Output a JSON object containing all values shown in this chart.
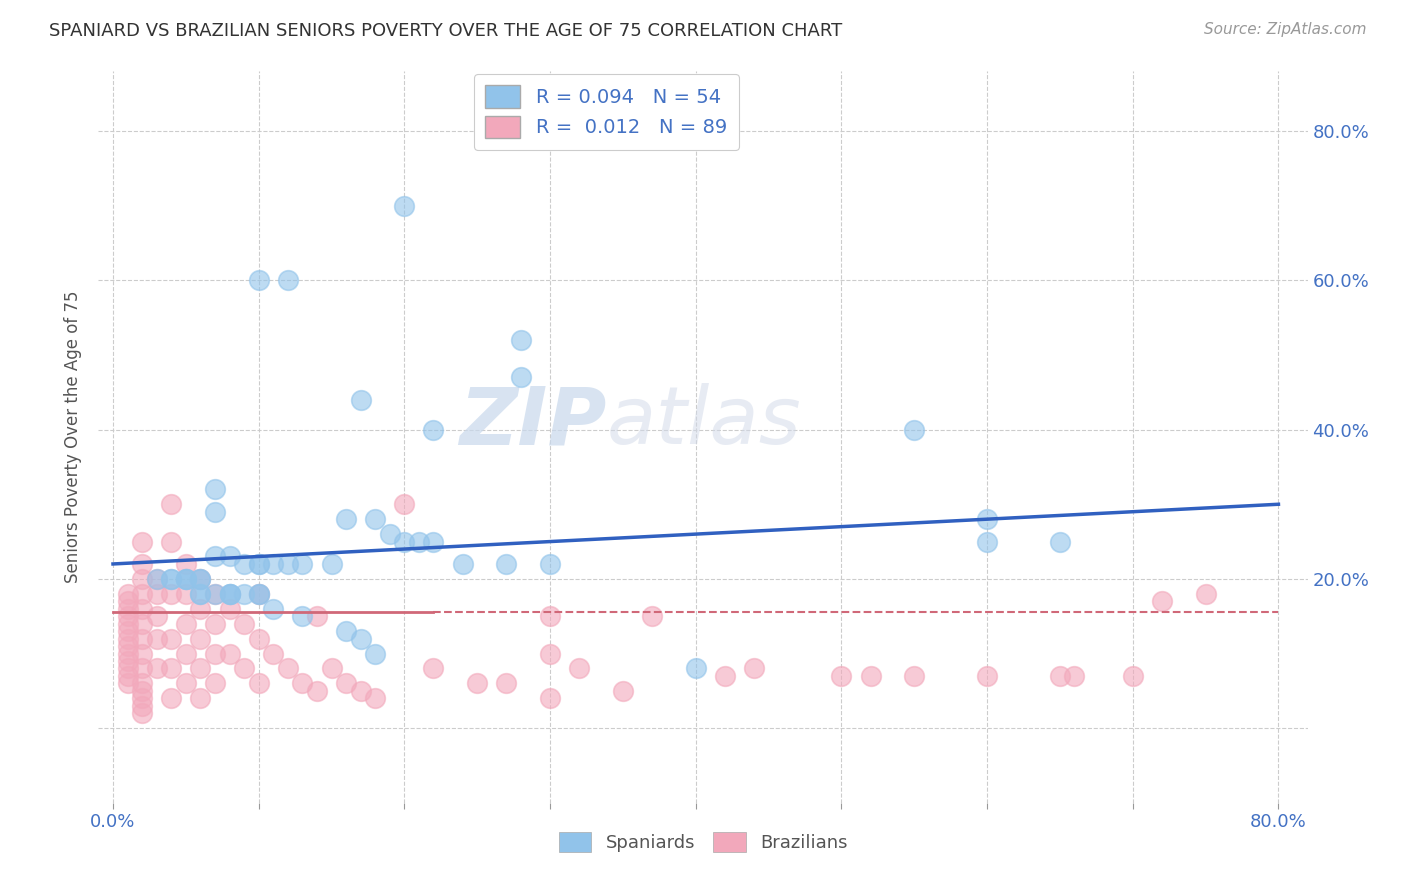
{
  "title": "SPANIARD VS BRAZILIAN SENIORS POVERTY OVER THE AGE OF 75 CORRELATION CHART",
  "source": "Source: ZipAtlas.com",
  "ylabel": "Seniors Poverty Over the Age of 75",
  "spaniard_color": "#91C3EA",
  "brazilian_color": "#F2A8BB",
  "spaniard_line_color": "#3060C0",
  "brazilian_line_color": "#D06878",
  "r_spaniard": 0.094,
  "n_spaniard": 54,
  "r_brazilian": 0.012,
  "n_brazilian": 89,
  "watermark_zip": "ZIP",
  "watermark_atlas": "atlas",
  "spaniards_x": [
    0.2,
    0.1,
    0.12,
    0.28,
    0.28,
    0.17,
    0.22,
    0.55,
    0.6,
    0.6,
    0.65,
    0.07,
    0.07,
    0.16,
    0.18,
    0.19,
    0.2,
    0.21,
    0.22,
    0.07,
    0.08,
    0.09,
    0.1,
    0.1,
    0.11,
    0.12,
    0.13,
    0.15,
    0.24,
    0.27,
    0.03,
    0.04,
    0.04,
    0.05,
    0.05,
    0.05,
    0.06,
    0.06,
    0.06,
    0.06,
    0.07,
    0.08,
    0.08,
    0.08,
    0.09,
    0.1,
    0.1,
    0.11,
    0.13,
    0.16,
    0.17,
    0.18,
    0.3,
    0.4
  ],
  "spaniards_y": [
    0.7,
    0.6,
    0.6,
    0.52,
    0.47,
    0.44,
    0.4,
    0.4,
    0.28,
    0.25,
    0.25,
    0.32,
    0.29,
    0.28,
    0.28,
    0.26,
    0.25,
    0.25,
    0.25,
    0.23,
    0.23,
    0.22,
    0.22,
    0.22,
    0.22,
    0.22,
    0.22,
    0.22,
    0.22,
    0.22,
    0.2,
    0.2,
    0.2,
    0.2,
    0.2,
    0.2,
    0.2,
    0.2,
    0.18,
    0.18,
    0.18,
    0.18,
    0.18,
    0.18,
    0.18,
    0.18,
    0.18,
    0.16,
    0.15,
    0.13,
    0.12,
    0.1,
    0.22,
    0.08
  ],
  "brazilians_x": [
    0.01,
    0.01,
    0.01,
    0.01,
    0.01,
    0.01,
    0.01,
    0.01,
    0.01,
    0.01,
    0.01,
    0.01,
    0.01,
    0.02,
    0.02,
    0.02,
    0.02,
    0.02,
    0.02,
    0.02,
    0.02,
    0.02,
    0.02,
    0.02,
    0.02,
    0.02,
    0.02,
    0.03,
    0.03,
    0.03,
    0.03,
    0.03,
    0.04,
    0.04,
    0.04,
    0.04,
    0.04,
    0.04,
    0.05,
    0.05,
    0.05,
    0.05,
    0.05,
    0.06,
    0.06,
    0.06,
    0.06,
    0.06,
    0.07,
    0.07,
    0.07,
    0.07,
    0.08,
    0.08,
    0.09,
    0.09,
    0.1,
    0.1,
    0.1,
    0.11,
    0.12,
    0.13,
    0.14,
    0.14,
    0.15,
    0.16,
    0.17,
    0.18,
    0.2,
    0.22,
    0.25,
    0.27,
    0.3,
    0.3,
    0.35,
    0.5,
    0.52,
    0.55,
    0.6,
    0.65,
    0.66,
    0.7,
    0.72,
    0.75,
    0.3,
    0.32,
    0.37,
    0.42,
    0.44
  ],
  "brazilians_y": [
    0.18,
    0.17,
    0.16,
    0.15,
    0.14,
    0.13,
    0.12,
    0.11,
    0.1,
    0.09,
    0.08,
    0.07,
    0.06,
    0.25,
    0.22,
    0.2,
    0.18,
    0.16,
    0.14,
    0.12,
    0.1,
    0.08,
    0.06,
    0.05,
    0.04,
    0.03,
    0.02,
    0.2,
    0.18,
    0.15,
    0.12,
    0.08,
    0.3,
    0.25,
    0.18,
    0.12,
    0.08,
    0.04,
    0.22,
    0.18,
    0.14,
    0.1,
    0.06,
    0.2,
    0.16,
    0.12,
    0.08,
    0.04,
    0.18,
    0.14,
    0.1,
    0.06,
    0.16,
    0.1,
    0.14,
    0.08,
    0.18,
    0.12,
    0.06,
    0.1,
    0.08,
    0.06,
    0.15,
    0.05,
    0.08,
    0.06,
    0.05,
    0.04,
    0.3,
    0.08,
    0.06,
    0.06,
    0.1,
    0.04,
    0.05,
    0.07,
    0.07,
    0.07,
    0.07,
    0.07,
    0.07,
    0.07,
    0.17,
    0.18,
    0.15,
    0.08,
    0.15,
    0.07,
    0.08
  ],
  "spaniard_trend": [
    0.0,
    0.8,
    0.22,
    0.3
  ],
  "brazilian_trend": [
    0.0,
    0.8,
    0.155,
    0.155
  ],
  "xtick_positions": [
    0.0,
    0.1,
    0.2,
    0.3,
    0.4,
    0.5,
    0.6,
    0.7,
    0.8
  ],
  "xtick_labels": [
    "0.0%",
    "",
    "",
    "",
    "",
    "",
    "",
    "",
    "80.0%"
  ],
  "ytick_positions": [
    0.0,
    0.2,
    0.4,
    0.6,
    0.8
  ],
  "ytick_labels_right": [
    "",
    "20.0%",
    "40.0%",
    "60.0%",
    "80.0%"
  ],
  "xlim": [
    -0.01,
    0.82
  ],
  "ylim": [
    -0.1,
    0.88
  ]
}
